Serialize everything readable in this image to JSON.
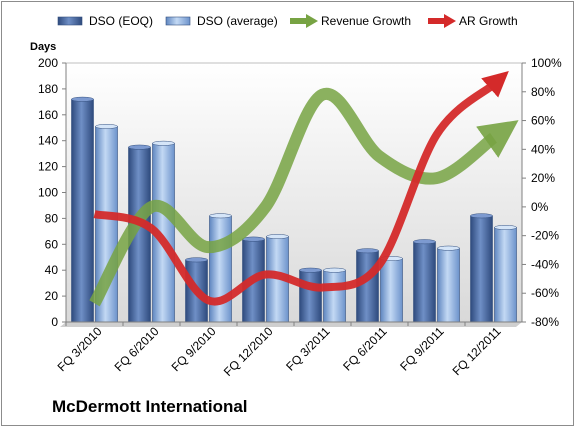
{
  "company": "McDermott International",
  "chart_data": {
    "type": "bar",
    "categories": [
      "FQ 3/2010",
      "FQ 6/2010",
      "FQ 9/2010",
      "FQ 12/2010",
      "FQ 3/2011",
      "FQ 6/2011",
      "FQ 9/2011",
      "FQ 12/2011"
    ],
    "left_axis": {
      "title": "Days",
      "ylim": [
        0,
        200
      ],
      "ticks": [
        0,
        20,
        40,
        60,
        80,
        100,
        120,
        140,
        160,
        180,
        200
      ]
    },
    "right_axis": {
      "ylim": [
        -80,
        100
      ],
      "ticks": [
        -80,
        -60,
        -40,
        -20,
        0,
        20,
        40,
        60,
        80,
        100
      ],
      "tick_labels": [
        "-80%",
        "-60%",
        "-40%",
        "-20%",
        "0%",
        "20%",
        "40%",
        "60%",
        "80%",
        "100%"
      ]
    },
    "series": [
      {
        "name": "DSO (EOQ)",
        "type": "bar",
        "axis": "left",
        "color": "#4f6fa6",
        "values": [
          172,
          135,
          48,
          64,
          40,
          55,
          62,
          82
        ]
      },
      {
        "name": "DSO (average)",
        "type": "bar",
        "axis": "left",
        "color": "#8fb4e3",
        "values": [
          151,
          138,
          82,
          66,
          40,
          49,
          57,
          73
        ]
      },
      {
        "name": "Revenue Growth",
        "type": "line",
        "axis": "right",
        "color": "#77a343",
        "values": [
          -67,
          0,
          -28,
          0,
          78,
          35,
          20,
          48
        ]
      },
      {
        "name": "AR Growth",
        "type": "line",
        "axis": "right",
        "color": "#d42a2a",
        "values": [
          -5,
          -15,
          -65,
          -47,
          -56,
          -40,
          50,
          85
        ]
      }
    ],
    "legend_position": "top",
    "grid": false
  }
}
